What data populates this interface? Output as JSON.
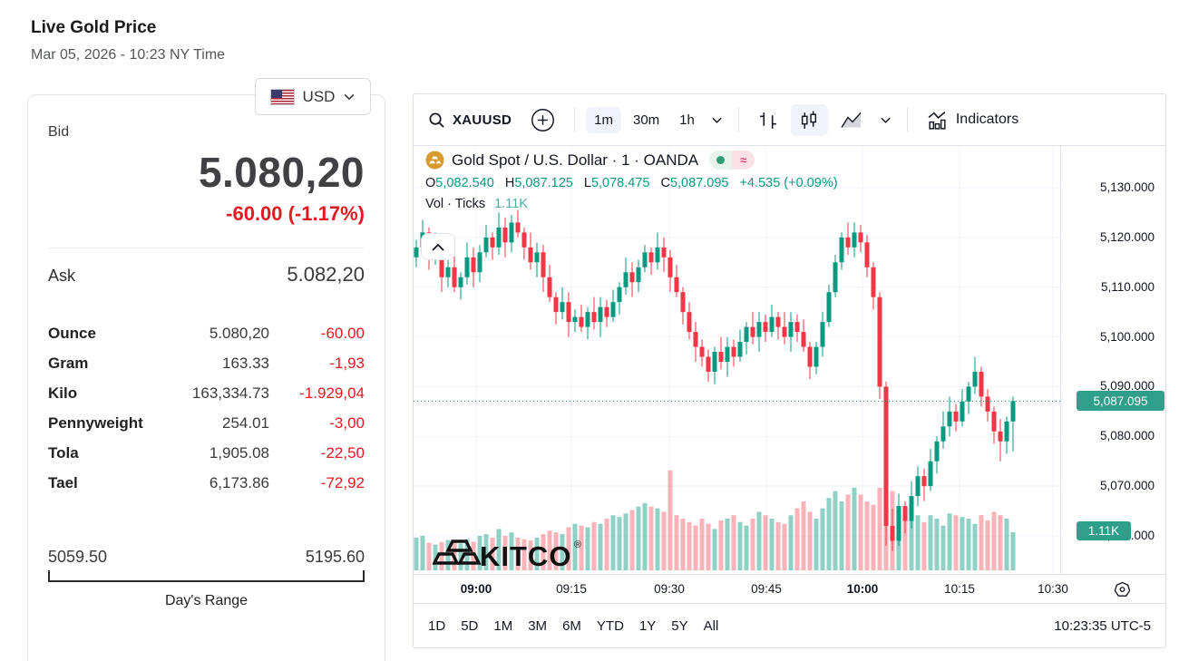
{
  "page": {
    "title": "Live Gold Price",
    "timestamp": "Mar 05, 2026 - 10:23 NY Time"
  },
  "currency_selector": {
    "selected": "USD",
    "flag": "us-flag"
  },
  "quote": {
    "bid_label": "Bid",
    "bid": "5.080,20",
    "change": "-60.00 (-1.17%)",
    "ask_label": "Ask",
    "ask": "5.082,20",
    "units": [
      {
        "label": "Ounce",
        "value": "5.080,20",
        "change": "-60.00"
      },
      {
        "label": "Gram",
        "value": "163.33",
        "change": "-1,93"
      },
      {
        "label": "Kilo",
        "value": "163,334.73",
        "change": "-1.929,04"
      },
      {
        "label": "Pennyweight",
        "value": "254.01",
        "change": "-3,00"
      },
      {
        "label": "Tola",
        "value": "1,905.08",
        "change": "-22,50"
      },
      {
        "label": "Tael",
        "value": "6,173.86",
        "change": "-72,92"
      }
    ],
    "range": {
      "low": "5059.50",
      "high": "5195.60",
      "label": "Day's Range"
    }
  },
  "chart": {
    "toolbar": {
      "symbol": "XAUUSD",
      "intervals": [
        "1m",
        "30m",
        "1h"
      ],
      "active_interval": "1m",
      "indicators_label": "Indicators"
    },
    "legend": {
      "title": "Gold Spot / U.S. Dollar · 1 · OANDA",
      "o_label": "O",
      "o": "5,082.540",
      "h_label": "H",
      "h": "5,087.125",
      "l_label": "L",
      "l": "5,078.475",
      "c_label": "C",
      "c": "5,087.095",
      "change": "+4.535 (+0.09%)",
      "volume_label": "Vol · Ticks",
      "volume_value": "1.11K",
      "collapse_glyph": "⌃"
    },
    "watermark": "KITCO",
    "price_axis_labels": [
      "5,130.000",
      "5,120.000",
      "5,110.000",
      "5,100.000",
      "5,090.000",
      "5,080.000",
      "5,070.000",
      "5,060.000"
    ],
    "price_badge": "5,087.095",
    "volume_badge": "1.11K",
    "time_axis": [
      {
        "label": "09:00",
        "bold": true
      },
      {
        "label": "09:15",
        "bold": false
      },
      {
        "label": "09:30",
        "bold": false
      },
      {
        "label": "09:45",
        "bold": false
      },
      {
        "label": "10:00",
        "bold": true
      },
      {
        "label": "10:15",
        "bold": false
      },
      {
        "label": "10:30",
        "bold": false
      }
    ],
    "footer": {
      "ranges": [
        "1D",
        "5D",
        "1M",
        "3M",
        "6M",
        "YTD",
        "1Y",
        "5Y",
        "All"
      ],
      "clock": "10:23:35 UTC-5"
    }
  },
  "chart_data": {
    "type": "candlestick+volume",
    "symbol": "Gold Spot / U.S. Dollar (XAUUSD)",
    "interval": "1m",
    "x_range": [
      "08:50",
      "10:30"
    ],
    "ylim": [
      5055,
      5135
    ],
    "y_ticks": [
      5130,
      5120,
      5110,
      5100,
      5090,
      5080,
      5070,
      5060
    ],
    "current_price": 5087.095,
    "grid": true,
    "colors": {
      "up": "#089981",
      "down": "#f23645",
      "vol_up": "rgba(8,153,129,0.45)",
      "vol_down": "rgba(242,54,69,0.38)",
      "grid": "#f0f3fa",
      "price_line": "#089981"
    },
    "candles": [
      [
        5116,
        5119.5,
        5114,
        5118
      ],
      [
        5118,
        5123.5,
        5117,
        5121
      ],
      [
        5121,
        5122,
        5113.5,
        5116
      ],
      [
        5116,
        5121,
        5114.5,
        5118
      ],
      [
        5118,
        5120,
        5109,
        5112
      ],
      [
        5112,
        5115.5,
        5110,
        5114
      ],
      [
        5114,
        5116.5,
        5109,
        5110
      ],
      [
        5110,
        5113,
        5107.5,
        5112
      ],
      [
        5112,
        5119,
        5110.5,
        5116
      ],
      [
        5116,
        5118,
        5110,
        5113
      ],
      [
        5113,
        5118.5,
        5111,
        5117
      ],
      [
        5117,
        5122.5,
        5116,
        5120
      ],
      [
        5120,
        5121,
        5115.5,
        5118
      ],
      [
        5118,
        5125,
        5116.5,
        5122
      ],
      [
        5122,
        5124,
        5116,
        5119
      ],
      [
        5119,
        5124.5,
        5117,
        5123
      ],
      [
        5123,
        5125.5,
        5120,
        5121
      ],
      [
        5121,
        5122,
        5115.5,
        5118
      ],
      [
        5118,
        5121,
        5113.5,
        5115
      ],
      [
        5115,
        5119,
        5112,
        5117
      ],
      [
        5117,
        5118.5,
        5109,
        5112
      ],
      [
        5112,
        5114.5,
        5107,
        5108
      ],
      [
        5108,
        5109,
        5102.5,
        5105
      ],
      [
        5105,
        5110,
        5103.5,
        5107
      ],
      [
        5107,
        5109,
        5100,
        5103
      ],
      [
        5103,
        5105.5,
        5101,
        5104
      ],
      [
        5104,
        5106.5,
        5101,
        5102
      ],
      [
        5102,
        5106,
        5099.5,
        5105
      ],
      [
        5105,
        5108,
        5101.5,
        5103
      ],
      [
        5103,
        5108,
        5100,
        5106
      ],
      [
        5106,
        5107.5,
        5102,
        5104
      ],
      [
        5104,
        5109.5,
        5103,
        5107
      ],
      [
        5107,
        5111,
        5104.5,
        5110
      ],
      [
        5110,
        5116,
        5108.5,
        5113
      ],
      [
        5113,
        5115,
        5108,
        5111
      ],
      [
        5111,
        5115.5,
        5109,
        5114
      ],
      [
        5114,
        5118.5,
        5113,
        5117
      ],
      [
        5117,
        5118,
        5112.5,
        5115
      ],
      [
        5115,
        5121,
        5113.5,
        5118
      ],
      [
        5118,
        5120,
        5113,
        5116
      ],
      [
        5116,
        5117.5,
        5109,
        5112
      ],
      [
        5112,
        5114.5,
        5108,
        5109
      ],
      [
        5109,
        5110,
        5102.5,
        5105
      ],
      [
        5105,
        5107,
        5099.5,
        5101
      ],
      [
        5101,
        5103,
        5095,
        5098
      ],
      [
        5098,
        5099.5,
        5094,
        5096
      ],
      [
        5096,
        5097.5,
        5091,
        5093
      ],
      [
        5093,
        5098,
        5090.5,
        5097
      ],
      [
        5097,
        5100,
        5093.5,
        5095
      ],
      [
        5095,
        5100,
        5092,
        5098
      ],
      [
        5098,
        5099.5,
        5094,
        5096
      ],
      [
        5096,
        5101.5,
        5095,
        5099
      ],
      [
        5099,
        5103,
        5096.5,
        5102
      ],
      [
        5102,
        5105,
        5098.5,
        5100
      ],
      [
        5100,
        5105,
        5097,
        5103
      ],
      [
        5103,
        5104.5,
        5099,
        5101
      ],
      [
        5101,
        5106.5,
        5100,
        5104
      ],
      [
        5104,
        5105,
        5099.5,
        5102
      ],
      [
        5102,
        5105,
        5098.5,
        5100
      ],
      [
        5100,
        5105,
        5097,
        5103
      ],
      [
        5103,
        5104.5,
        5099,
        5101
      ],
      [
        5101,
        5103.5,
        5097,
        5098
      ],
      [
        5098,
        5099,
        5091.5,
        5094
      ],
      [
        5094,
        5099,
        5092.5,
        5098
      ],
      [
        5098,
        5105,
        5096,
        5103
      ],
      [
        5103,
        5110.5,
        5102,
        5109
      ],
      [
        5109,
        5116.5,
        5108,
        5115
      ],
      [
        5115,
        5121,
        5113.5,
        5120
      ],
      [
        5120,
        5123,
        5116.5,
        5118
      ],
      [
        5118,
        5123,
        5116,
        5121
      ],
      [
        5121,
        5122.5,
        5117,
        5119
      ],
      [
        5119,
        5120.5,
        5112,
        5114
      ],
      [
        5114,
        5115,
        5105.5,
        5108
      ],
      [
        5108,
        5109,
        5087.5,
        5090
      ],
      [
        5090,
        5091,
        5058,
        5062
      ],
      [
        5062,
        5065.5,
        5057,
        5059
      ],
      [
        5059,
        5068.5,
        5058,
        5066
      ],
      [
        5066,
        5067,
        5060.5,
        5063
      ],
      [
        5063,
        5071,
        5061.5,
        5068
      ],
      [
        5068,
        5074,
        5066,
        5072
      ],
      [
        5072,
        5073.5,
        5067,
        5070
      ],
      [
        5070,
        5077.5,
        5069,
        5075
      ],
      [
        5075,
        5080,
        5072.5,
        5079
      ],
      [
        5079,
        5085,
        5077.5,
        5082
      ],
      [
        5082,
        5088,
        5080,
        5085
      ],
      [
        5085,
        5086.5,
        5081,
        5083
      ],
      [
        5083,
        5089.5,
        5082,
        5087
      ],
      [
        5087,
        5091,
        5084.5,
        5090
      ],
      [
        5090,
        5096,
        5088.5,
        5093
      ],
      [
        5093,
        5094,
        5086,
        5088
      ],
      [
        5088,
        5089.5,
        5083,
        5085
      ],
      [
        5085,
        5086,
        5078.5,
        5081
      ],
      [
        5081,
        5083.5,
        5075,
        5079
      ],
      [
        5079,
        5084,
        5076.5,
        5083
      ],
      [
        5083,
        5088,
        5077,
        5087.1
      ]
    ],
    "volumes": [
      950,
      1000,
      800,
      750,
      820,
      880,
      850,
      780,
      900,
      830,
      1000,
      1050,
      950,
      1200,
      1000,
      1100,
      950,
      900,
      870,
      950,
      1050,
      1150,
      1100,
      1050,
      1250,
      1350,
      1300,
      1250,
      1400,
      1350,
      1500,
      1600,
      1550,
      1650,
      1750,
      1850,
      1950,
      1850,
      1800,
      1700,
      2900,
      1600,
      1500,
      1400,
      1300,
      1500,
      1350,
      1200,
      1450,
      1500,
      1600,
      1400,
      1300,
      1500,
      1700,
      1600,
      1500,
      1400,
      1350,
      1600,
      1800,
      2000,
      1700,
      1500,
      1800,
      2100,
      2300,
      2000,
      2200,
      2400,
      2200,
      2000,
      1900,
      2400,
      2900,
      2300,
      1800,
      1500,
      1700,
      1600,
      1400,
      1600,
      1500,
      1300,
      1650,
      1600,
      1550,
      1500,
      1350,
      1600,
      1450,
      1700,
      1600,
      1500,
      1110
    ]
  }
}
